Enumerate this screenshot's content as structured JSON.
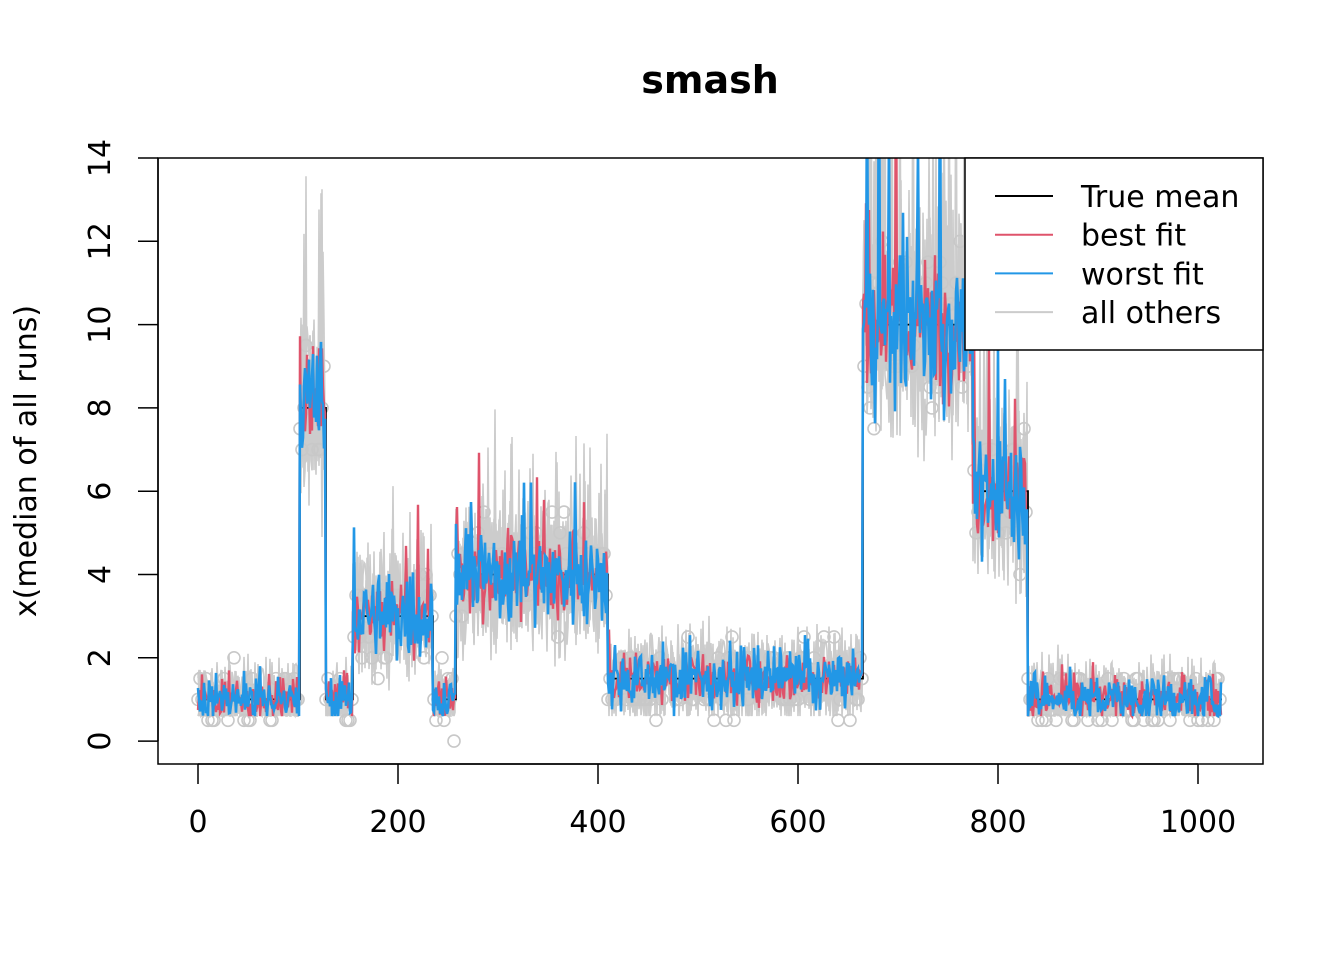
{
  "chart_data": {
    "type": "line",
    "title": "smash",
    "xlabel": "",
    "ylabel": "x(median of all runs)",
    "xlim": [
      -40,
      1065
    ],
    "ylim": [
      -0.55,
      14
    ],
    "xticks": [
      0,
      200,
      400,
      600,
      800,
      1000
    ],
    "yticks": [
      0,
      2,
      4,
      6,
      8,
      10,
      12,
      14
    ],
    "n_points": 1024,
    "legend_position": "top-right",
    "colors": {
      "true_mean": "#000000",
      "best_fit": "#DF536B",
      "worst_fit": "#2297E6",
      "others": "#CCCCCC",
      "points": "#C8C8C8"
    },
    "legend": [
      {
        "label": "True mean",
        "color": "#000000"
      },
      {
        "label": "best fit",
        "color": "#DF536B"
      },
      {
        "label": "worst fit",
        "color": "#2297E6"
      },
      {
        "label": "all others",
        "color": "#CCCCCC"
      }
    ],
    "true_mean_segments": [
      {
        "x0": 0,
        "x1": 102,
        "y": 1.0
      },
      {
        "x0": 102,
        "x1": 128,
        "y": 8.0
      },
      {
        "x0": 128,
        "x1": 155,
        "y": 1.0
      },
      {
        "x0": 155,
        "x1": 235,
        "y": 3.0
      },
      {
        "x0": 235,
        "x1": 258,
        "y": 1.0
      },
      {
        "x0": 258,
        "x1": 410,
        "y": 4.0
      },
      {
        "x0": 410,
        "x1": 665,
        "y": 1.5
      },
      {
        "x0": 665,
        "x1": 775,
        "y": 10.0
      },
      {
        "x0": 775,
        "x1": 830,
        "y": 6.0
      },
      {
        "x0": 830,
        "x1": 1024,
        "y": 1.0
      }
    ]
  }
}
